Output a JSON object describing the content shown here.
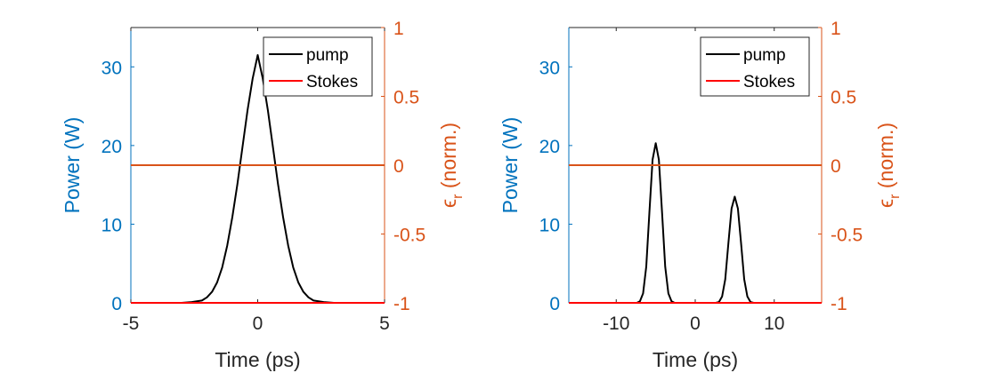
{
  "colors": {
    "left_axis": "#0072BD",
    "right_axis": "#D95319",
    "pump": "#000000",
    "stokes": "#FF0000",
    "eps_line": "#D95319",
    "axis_box": "#262626"
  },
  "chart_data": [
    {
      "type": "line",
      "xlabel": "Time (ps)",
      "ylabel": "Power (W)",
      "y2label_main": "ϵ",
      "y2label_sub": "r",
      "y2label_rest": " (norm.)",
      "xlim": [
        -5,
        5
      ],
      "ylim": [
        0,
        35
      ],
      "y2lim": [
        -1,
        1
      ],
      "xticks": [
        -5,
        0,
        5
      ],
      "xtick_labels": [
        "-5",
        "0",
        "5"
      ],
      "yticks": [
        0,
        10,
        20,
        30
      ],
      "ytick_labels": [
        "0",
        "10",
        "20",
        "30"
      ],
      "y2ticks": [
        -1,
        -0.5,
        0,
        0.5,
        1
      ],
      "y2tick_labels": [
        "-1",
        "-0.5",
        "0",
        "0.5",
        "1"
      ],
      "legend": {
        "position": "top-right",
        "entries": [
          "pump",
          "Stokes"
        ]
      },
      "series": [
        {
          "name": "pump",
          "x": [
            -5,
            -3,
            -2.6,
            -2.2,
            -2,
            -1.8,
            -1.6,
            -1.4,
            -1.2,
            -1,
            -0.8,
            -0.6,
            -0.4,
            -0.2,
            0,
            0.2,
            0.4,
            0.6,
            0.8,
            1,
            1.2,
            1.4,
            1.6,
            1.8,
            2,
            2.2,
            2.6,
            3,
            5
          ],
          "values": [
            0,
            0,
            0.1,
            0.3,
            0.7,
            1.4,
            2.6,
            4.5,
            7.3,
            10.9,
            15.1,
            19.8,
            24.5,
            28.5,
            31.5,
            28.5,
            24.5,
            19.8,
            15.1,
            10.9,
            7.3,
            4.5,
            2.6,
            1.4,
            0.7,
            0.3,
            0.1,
            0,
            0
          ]
        },
        {
          "name": "Stokes",
          "x": [
            -5,
            5
          ],
          "values": [
            0,
            0
          ]
        },
        {
          "axis": "right",
          "x": [
            -5,
            5
          ],
          "values": [
            0,
            0
          ]
        }
      ]
    },
    {
      "type": "line",
      "xlabel": "Time (ps)",
      "ylabel": "Power (W)",
      "y2label_main": "ϵ",
      "y2label_sub": "r",
      "y2label_rest": " (norm.)",
      "xlim": [
        -16,
        16
      ],
      "ylim": [
        0,
        35
      ],
      "y2lim": [
        -1,
        1
      ],
      "xticks": [
        -10,
        0,
        10
      ],
      "xtick_labels": [
        "-10",
        "0",
        "10"
      ],
      "yticks": [
        0,
        10,
        20,
        30
      ],
      "ytick_labels": [
        "0",
        "10",
        "20",
        "30"
      ],
      "y2ticks": [
        -1,
        -0.5,
        0,
        0.5,
        1
      ],
      "y2tick_labels": [
        "-1",
        "-0.5",
        "0",
        "0.5",
        "1"
      ],
      "legend": {
        "position": "top-right",
        "entries": [
          "pump",
          "Stokes"
        ]
      },
      "series": [
        {
          "name": "pump",
          "x": [
            -16,
            -7.4,
            -7,
            -6.6,
            -6.2,
            -5.8,
            -5.4,
            -5,
            -4.6,
            -4.2,
            -3.8,
            -3.4,
            -3,
            -2.6,
            2.6,
            3,
            3.4,
            3.8,
            4.2,
            4.6,
            5,
            5.4,
            5.8,
            6.2,
            6.6,
            7,
            7.4,
            16
          ],
          "values": [
            0,
            0,
            0.2,
            1.2,
            4.6,
            11.5,
            18.2,
            20.3,
            18.2,
            11.5,
            4.6,
            1.2,
            0.2,
            0,
            0,
            0.1,
            0.8,
            3.0,
            7.6,
            12,
            13.5,
            12,
            7.6,
            3.0,
            0.8,
            0.1,
            0,
            0
          ]
        },
        {
          "name": "Stokes",
          "x": [
            -16,
            16
          ],
          "values": [
            0,
            0
          ]
        },
        {
          "axis": "right",
          "x": [
            -16,
            16
          ],
          "values": [
            0,
            0
          ]
        }
      ]
    }
  ]
}
